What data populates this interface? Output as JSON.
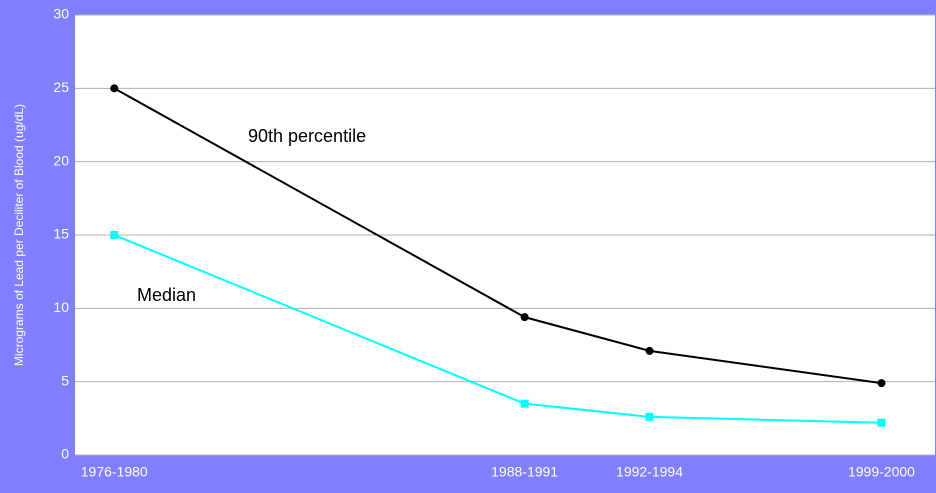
{
  "chart_data": {
    "type": "line",
    "y_label": "Micrograms of Lead per Deciliter of Blood (ug/dL)",
    "categories": [
      "1976-1980",
      "1988-1991",
      "1992-1994",
      "1999-2000"
    ],
    "series": [
      {
        "name": "90th percentile",
        "color": "#000000",
        "marker": "circle",
        "values": [
          25,
          9.4,
          7.1,
          4.9
        ]
      },
      {
        "name": "Median",
        "color": "#00ffff",
        "marker": "square",
        "values": [
          15,
          3.5,
          2.6,
          2.2
        ]
      }
    ],
    "xlim": [
      1976.9,
      2001
    ],
    "ylim": [
      0,
      30
    ],
    "yticks": [
      0,
      5,
      10,
      15,
      20,
      25,
      30
    ],
    "grid": true
  }
}
